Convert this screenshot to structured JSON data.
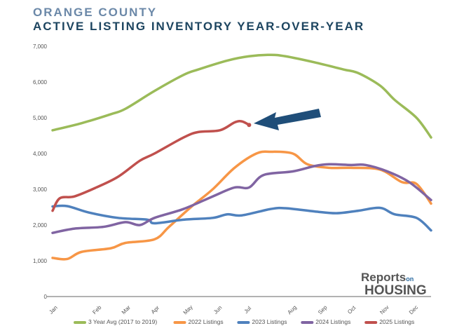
{
  "header": {
    "region": "ORANGE COUNTY",
    "title": "ACTIVE LISTING INVENTORY YEAR-OVER-YEAR"
  },
  "logo": {
    "text1": "Reports",
    "text2": "on",
    "text3": "HOUSING"
  },
  "chart_data": {
    "type": "line",
    "title": "ACTIVE LISTING INVENTORY YEAR-OVER-YEAR",
    "ylim": [
      0,
      7000
    ],
    "yticks": [
      0,
      1000,
      2000,
      3000,
      4000,
      5000,
      6000,
      7000
    ],
    "ytick_labels": [
      "0",
      "1,000",
      "2,000",
      "3,000",
      "4,000",
      "5,000",
      "6,000",
      "7,000"
    ],
    "x_unit": "week",
    "xlim": [
      0,
      52
    ],
    "months": [
      {
        "label": "Jan",
        "week": 0
      },
      {
        "label": "Feb",
        "week": 6
      },
      {
        "label": "Mar",
        "week": 10
      },
      {
        "label": "Apr",
        "week": 14
      },
      {
        "label": "May",
        "week": 18.5
      },
      {
        "label": "Jun",
        "week": 22.6
      },
      {
        "label": "Jul",
        "week": 26.7
      },
      {
        "label": "Aug",
        "week": 32.8
      },
      {
        "label": "Sep",
        "week": 37
      },
      {
        "label": "Oct",
        "week": 41
      },
      {
        "label": "Nov",
        "week": 45.5
      },
      {
        "label": "Dec",
        "week": 49.5
      }
    ],
    "legend_position": "bottom",
    "series": [
      {
        "name": "3 Year Avg (2017 to 2019)",
        "color": "#9bbb59",
        "points": [
          [
            0,
            4650
          ],
          [
            4,
            4850
          ],
          [
            8,
            5100
          ],
          [
            10,
            5250
          ],
          [
            14,
            5750
          ],
          [
            18,
            6200
          ],
          [
            20,
            6350
          ],
          [
            24,
            6600
          ],
          [
            27,
            6720
          ],
          [
            30,
            6760
          ],
          [
            32,
            6720
          ],
          [
            36,
            6550
          ],
          [
            40,
            6350
          ],
          [
            42,
            6250
          ],
          [
            45,
            5900
          ],
          [
            47,
            5500
          ],
          [
            50,
            5000
          ],
          [
            52,
            4450
          ]
        ]
      },
      {
        "name": "2022 Listings",
        "color": "#f79646",
        "points": [
          [
            0,
            1080
          ],
          [
            2,
            1050
          ],
          [
            4,
            1250
          ],
          [
            8,
            1350
          ],
          [
            10,
            1500
          ],
          [
            14,
            1600
          ],
          [
            16,
            1950
          ],
          [
            19,
            2500
          ],
          [
            22,
            3000
          ],
          [
            25,
            3600
          ],
          [
            28,
            4000
          ],
          [
            30,
            4050
          ],
          [
            33,
            4000
          ],
          [
            35,
            3700
          ],
          [
            38,
            3600
          ],
          [
            41,
            3600
          ],
          [
            45,
            3550
          ],
          [
            48,
            3200
          ],
          [
            50,
            3150
          ],
          [
            52,
            2600
          ]
        ]
      },
      {
        "name": "2023 Listings",
        "color": "#4f81bd",
        "points": [
          [
            0,
            2520
          ],
          [
            2,
            2530
          ],
          [
            5,
            2350
          ],
          [
            9,
            2200
          ],
          [
            13,
            2150
          ],
          [
            14,
            2050
          ],
          [
            18,
            2150
          ],
          [
            22,
            2200
          ],
          [
            24,
            2300
          ],
          [
            26,
            2270
          ],
          [
            30,
            2450
          ],
          [
            32,
            2470
          ],
          [
            36,
            2380
          ],
          [
            39,
            2330
          ],
          [
            42,
            2400
          ],
          [
            45,
            2480
          ],
          [
            47,
            2300
          ],
          [
            50,
            2200
          ],
          [
            52,
            1850
          ]
        ]
      },
      {
        "name": "2024 Listings",
        "color": "#8064a2",
        "points": [
          [
            0,
            1780
          ],
          [
            3,
            1900
          ],
          [
            7,
            1950
          ],
          [
            10,
            2080
          ],
          [
            12,
            2000
          ],
          [
            14,
            2200
          ],
          [
            18,
            2450
          ],
          [
            22,
            2800
          ],
          [
            25,
            3050
          ],
          [
            27,
            3050
          ],
          [
            29,
            3400
          ],
          [
            33,
            3500
          ],
          [
            36,
            3650
          ],
          [
            38,
            3700
          ],
          [
            41,
            3680
          ],
          [
            43,
            3680
          ],
          [
            46,
            3500
          ],
          [
            49,
            3200
          ],
          [
            52,
            2700
          ]
        ]
      },
      {
        "name": "2025 Listings",
        "color": "#c0504d",
        "points": [
          [
            0,
            2400
          ],
          [
            1,
            2750
          ],
          [
            3,
            2800
          ],
          [
            6,
            3050
          ],
          [
            9,
            3350
          ],
          [
            12,
            3800
          ],
          [
            14,
            4000
          ],
          [
            18,
            4450
          ],
          [
            20,
            4600
          ],
          [
            23,
            4650
          ],
          [
            25,
            4870
          ],
          [
            26,
            4900
          ],
          [
            27,
            4800
          ]
        ]
      }
    ],
    "annotation": {
      "type": "arrow",
      "color": "#1f4e79",
      "points_to": "2025 Listings last point"
    }
  }
}
